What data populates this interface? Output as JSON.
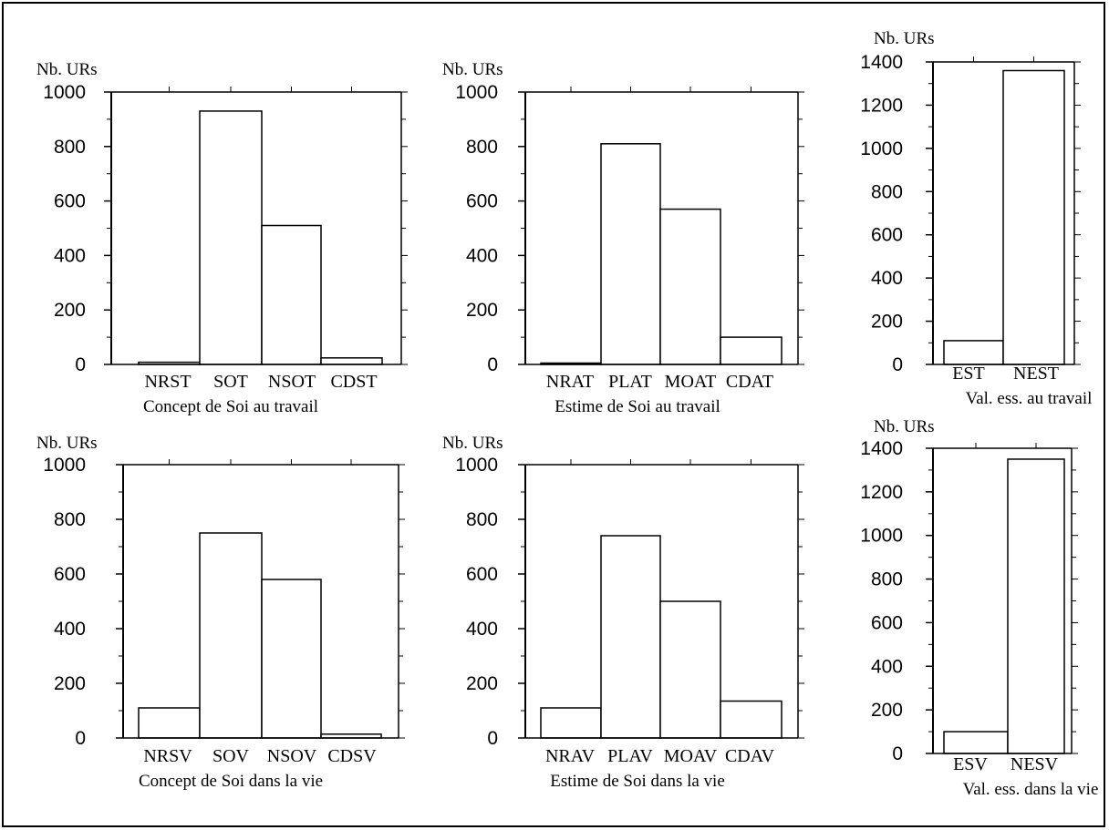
{
  "chart_data": [
    {
      "type": "bar",
      "ylabel": "Nb. URs",
      "xlabel": "Concept de Soi au travail",
      "categories": [
        "NRST",
        "SOT",
        "NSOT",
        "CDST"
      ],
      "values": [
        8,
        930,
        510,
        24
      ],
      "ylim": [
        0,
        1000
      ],
      "yticks": [
        0,
        200,
        400,
        600,
        800,
        1000
      ],
      "grid": false
    },
    {
      "type": "bar",
      "ylabel": "Nb. URs",
      "xlabel": "Estime de Soi au travail",
      "categories": [
        "NRAT",
        "PLAT",
        "MOAT",
        "CDAT"
      ],
      "values": [
        5,
        810,
        570,
        100
      ],
      "ylim": [
        0,
        1000
      ],
      "yticks": [
        0,
        200,
        400,
        600,
        800,
        1000
      ],
      "grid": false
    },
    {
      "type": "bar",
      "ylabel": "Nb. URs",
      "xlabel": "Val. ess. au travail",
      "categories": [
        "EST",
        "NEST"
      ],
      "values": [
        110,
        1360
      ],
      "ylim": [
        0,
        1400
      ],
      "yticks": [
        0,
        200,
        400,
        600,
        800,
        1000,
        1200,
        1400
      ],
      "grid": false
    },
    {
      "type": "bar",
      "ylabel": "Nb. URs",
      "xlabel": "Concept de Soi dans la vie",
      "categories": [
        "NRSV",
        "SOV",
        "NSOV",
        "CDSV"
      ],
      "values": [
        110,
        750,
        580,
        14
      ],
      "ylim": [
        0,
        1000
      ],
      "yticks": [
        0,
        200,
        400,
        600,
        800,
        1000
      ],
      "grid": false
    },
    {
      "type": "bar",
      "ylabel": "Nb. URs",
      "xlabel": "Estime de Soi dans la vie",
      "categories": [
        "NRAV",
        "PLAV",
        "MOAV",
        "CDAV"
      ],
      "values": [
        110,
        740,
        500,
        135
      ],
      "ylim": [
        0,
        1000
      ],
      "yticks": [
        0,
        200,
        400,
        600,
        800,
        1000
      ],
      "grid": false
    },
    {
      "type": "bar",
      "ylabel": "Nb. URs",
      "xlabel": "Val. ess. dans la vie",
      "categories": [
        "ESV",
        "NESV"
      ],
      "values": [
        100,
        1350
      ],
      "ylim": [
        0,
        1400
      ],
      "yticks": [
        0,
        200,
        400,
        600,
        800,
        1000,
        1200,
        1400
      ],
      "grid": false
    }
  ]
}
